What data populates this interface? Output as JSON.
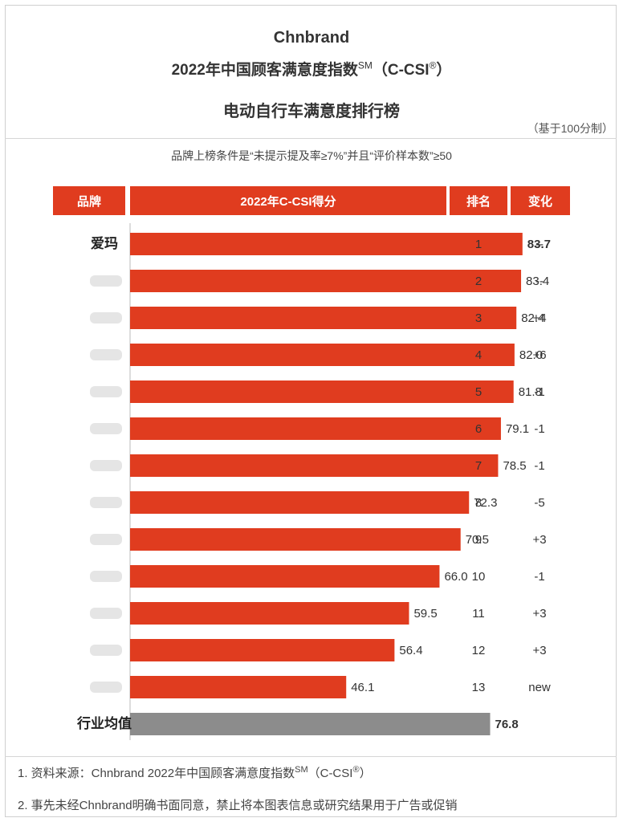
{
  "header": {
    "brand_line": "Chnbrand",
    "index_line": "2022年中国顾客满意度指数",
    "index_sup": "SM",
    "index_paren": "（C-CSI",
    "index_reg": "®",
    "index_close": "）",
    "subtitle": "电动自行车满意度排行榜",
    "scale_note": "（基于100分制）",
    "criteria": "品牌上榜条件是“未提示提及率≥7%”并且“评价样本数”≥50"
  },
  "table_headers": {
    "brand": "品牌",
    "score": "2022年C-CSI得分",
    "rank": "排名",
    "change": "变化"
  },
  "colors": {
    "bar": "#e03c1f",
    "average_bar": "#8c8c8c",
    "header_bg": "#e03c1f"
  },
  "chart_data": {
    "type": "bar",
    "orientation": "horizontal",
    "categories": [
      "爱玛",
      "",
      "",
      "",
      "",
      "",
      "",
      "",
      "",
      "",
      "",
      "",
      "",
      "行业均值"
    ],
    "values": [
      83.7,
      83.4,
      82.4,
      82.0,
      81.8,
      79.1,
      78.5,
      72.3,
      70.5,
      66.0,
      59.5,
      56.4,
      46.1,
      76.8
    ],
    "value_labels": [
      "83.7",
      "83.4",
      "82.4",
      "82.0",
      "81.8",
      "79.1",
      "78.5",
      "72.3",
      "70.5",
      "66.0",
      "59.5",
      "56.4",
      "46.1",
      "76.8"
    ],
    "ranks": [
      "1",
      "2",
      "3",
      "4",
      "5",
      "6",
      "7",
      "8",
      "9",
      "10",
      "11",
      "12",
      "13",
      ""
    ],
    "changes": [
      "--",
      "--",
      "+4",
      "+6",
      "-1",
      "-1",
      "-1",
      "-5",
      "+3",
      "-1",
      "+3",
      "+3",
      "new",
      ""
    ],
    "blurred_brand_names": true,
    "xlim": [
      0,
      100
    ],
    "grid": false,
    "legend": "none"
  },
  "footnotes": {
    "source_prefix": "1. 资料来源：Chnbrand 2022年中国顾客满意度指数",
    "source_sup": "SM",
    "source_paren": "（C-CSI",
    "source_reg": "®",
    "source_close": "）",
    "disclaimer": "2. 事先未经Chnbrand明确书面同意，禁止将本图表信息或研究结果用于广告或促销"
  }
}
